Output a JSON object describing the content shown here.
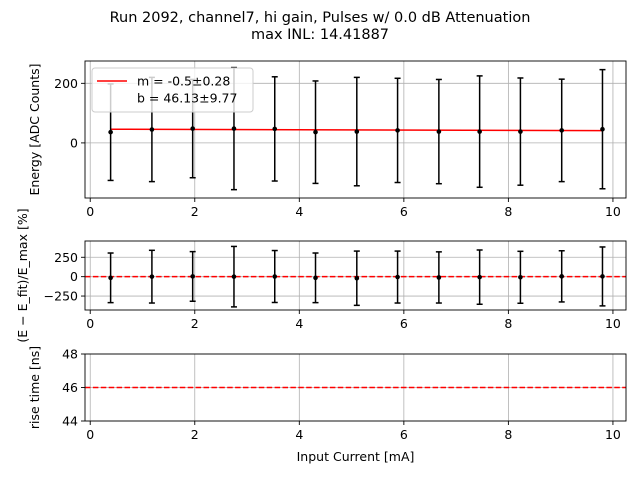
{
  "figure": {
    "title_line1": "Run 2092, channel7, hi gain, Pulses w/ 0.0 dB Attenuation",
    "title_line2": "max INL: 14.41887"
  },
  "chart_data": [
    {
      "type": "scatter",
      "panel": "energy",
      "xlabel": "",
      "ylabel": "Energy [ADC Counts]",
      "xlim": [
        -0.1,
        10.25
      ],
      "ylim": [
        -185,
        275
      ],
      "xticks": [
        0,
        2,
        4,
        6,
        8,
        10
      ],
      "xtick_labels": [
        "0",
        "2",
        "4",
        "6",
        "8",
        "10"
      ],
      "yticks": [
        0,
        200
      ],
      "ytick_labels": [
        "0",
        "200"
      ],
      "show_xtick_labels": true,
      "grid": true,
      "legend_placement": "top-left",
      "x": [
        0.39,
        1.18,
        1.96,
        2.75,
        3.53,
        4.31,
        5.1,
        5.88,
        6.67,
        7.45,
        8.23,
        9.02,
        9.8
      ],
      "y": [
        36,
        45,
        48,
        48,
        47,
        36,
        38,
        42,
        38,
        38,
        38,
        42,
        46
      ],
      "yerr": [
        162,
        175,
        165,
        205,
        175,
        172,
        182,
        175,
        175,
        187,
        180,
        172,
        200
      ],
      "series": [
        {
          "name": "m = -0.5±0.28",
          "kind": "fit",
          "slope": -0.5,
          "intercept": 46.13,
          "color": "#ff0000"
        },
        {
          "name": "b = 46.13±9.77",
          "kind": "text"
        }
      ]
    },
    {
      "type": "scatter",
      "panel": "residual",
      "xlabel": "",
      "ylabel": "(E − E_fit)/E_max [%]",
      "xlim": [
        -0.1,
        10.25
      ],
      "ylim": [
        -430,
        460
      ],
      "xticks": [
        0,
        2,
        4,
        6,
        8,
        10
      ],
      "xtick_labels": [
        "0",
        "2",
        "4",
        "6",
        "8",
        "10"
      ],
      "yticks": [
        -250,
        0,
        250
      ],
      "ytick_labels": [
        "−250",
        "0",
        "250"
      ],
      "show_xtick_labels": true,
      "grid": true,
      "reference_line": {
        "y": 0,
        "color": "#ff0000",
        "style": "dashed"
      },
      "x": [
        0.39,
        1.18,
        1.96,
        2.75,
        3.53,
        4.31,
        5.1,
        5.88,
        6.67,
        7.45,
        8.23,
        9.02,
        9.8
      ],
      "y": [
        -15,
        0,
        3,
        0,
        2,
        -15,
        -20,
        -5,
        -10,
        -6,
        -8,
        4,
        3
      ],
      "yerr": [
        320,
        340,
        320,
        390,
        335,
        320,
        350,
        335,
        330,
        350,
        335,
        330,
        380
      ]
    },
    {
      "type": "line",
      "panel": "risetime",
      "xlabel": "Input Current [mA]",
      "ylabel": "rise time [ns]",
      "xlim": [
        -0.1,
        10.25
      ],
      "ylim": [
        44,
        48
      ],
      "xticks": [
        0,
        2,
        4,
        6,
        8,
        10
      ],
      "xtick_labels": [
        "0",
        "2",
        "4",
        "6",
        "8",
        "10"
      ],
      "yticks": [
        44,
        46,
        48
      ],
      "ytick_labels": [
        "44",
        "46",
        "48"
      ],
      "show_xtick_labels": true,
      "grid": true,
      "reference_line": {
        "y": 46,
        "color": "#ff0000",
        "style": "dashed"
      }
    }
  ]
}
